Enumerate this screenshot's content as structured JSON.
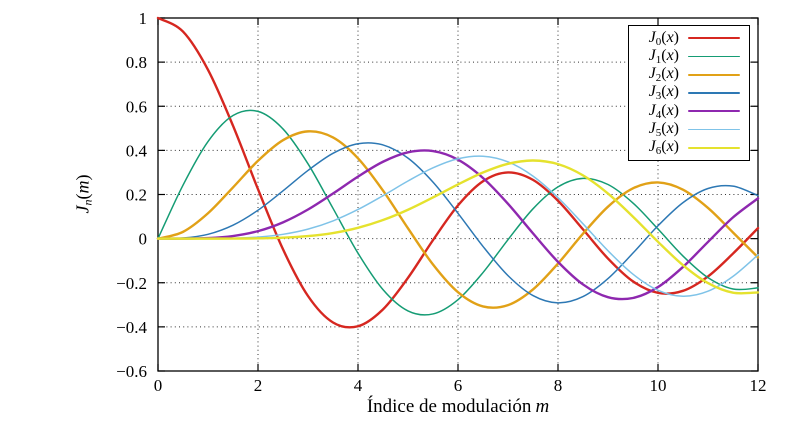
{
  "chart": {
    "background": "#ffffff",
    "axis_color": "#000000",
    "grid_color": "#333333"
  },
  "labels": {
    "xlabel": {
      "text": "Índice de modulación",
      "var": "m"
    },
    "ylabel": {
      "base": "J",
      "sub": "n",
      "open": "(",
      "var": "m",
      "close": ")"
    }
  },
  "chart_data": {
    "type": "line",
    "title": "",
    "xlabel": "Índice de modulación m",
    "ylabel": "J_n(m)",
    "xlim": [
      0,
      12
    ],
    "ylim": [
      -0.6,
      1
    ],
    "grid": true,
    "legend_position": "top-right",
    "xticks": [
      0,
      2,
      4,
      6,
      8,
      10,
      12
    ],
    "xtick_labels": [
      "0",
      "2",
      "4",
      "6",
      "8",
      "10",
      "12"
    ],
    "yticks": [
      1,
      0.8,
      0.6,
      0.4,
      0.2,
      0,
      -0.2,
      -0.4,
      -0.6
    ],
    "ytick_labels": [
      "1",
      "0.8",
      "0.6",
      "0.4",
      "0.2",
      "0",
      "−0.2",
      "−0.4",
      "−0.6"
    ],
    "x": [
      0,
      0.5,
      1,
      1.5,
      2,
      2.5,
      3,
      3.5,
      4,
      4.5,
      5,
      5.5,
      6,
      6.5,
      7,
      7.5,
      8,
      8.5,
      9,
      9.5,
      10,
      10.5,
      11,
      11.5,
      12
    ],
    "series": [
      {
        "name": "J0(x)",
        "label_parts": [
          [
            "i",
            "J"
          ],
          [
            "sub",
            "0"
          ],
          [
            "t",
            "("
          ],
          [
            "i",
            "x"
          ],
          [
            "t",
            ")"
          ]
        ],
        "color": "#d62720",
        "width": 2.4,
        "values": [
          1,
          0.9385,
          0.7652,
          0.5118,
          0.2239,
          -0.0484,
          -0.2601,
          -0.3801,
          -0.3971,
          -0.3205,
          -0.1776,
          -0.0068,
          0.1506,
          0.2601,
          0.3001,
          0.2663,
          0.1717,
          0.0419,
          -0.0903,
          -0.1939,
          -0.2459,
          -0.2366,
          -0.1712,
          -0.0677,
          0.0477
        ]
      },
      {
        "name": "J1(x)",
        "label_parts": [
          [
            "i",
            "J"
          ],
          [
            "sub",
            "1"
          ],
          [
            "t",
            "("
          ],
          [
            "i",
            "x"
          ],
          [
            "t",
            ")"
          ]
        ],
        "color": "#159c74",
        "width": 1.5,
        "values": [
          0,
          0.2423,
          0.4401,
          0.5579,
          0.5767,
          0.4971,
          0.3391,
          0.1374,
          -0.066,
          -0.2311,
          -0.3276,
          -0.3414,
          -0.2767,
          -0.1538,
          -0.0047,
          0.1352,
          0.2346,
          0.2731,
          0.2453,
          0.1613,
          0.0435,
          -0.0789,
          -0.1768,
          -0.2284,
          -0.2234
        ]
      },
      {
        "name": "J2(x)",
        "label_parts": [
          [
            "i",
            "J"
          ],
          [
            "sub",
            "2"
          ],
          [
            "t",
            "("
          ],
          [
            "i",
            "x"
          ],
          [
            "t",
            ")"
          ]
        ],
        "color": "#e1a117",
        "width": 2.4,
        "values": [
          0,
          0.0306,
          0.1149,
          0.2321,
          0.3528,
          0.4461,
          0.4861,
          0.4586,
          0.3641,
          0.2178,
          0.0466,
          -0.1173,
          -0.2429,
          -0.3074,
          -0.3014,
          -0.2303,
          -0.113,
          0.0223,
          0.1448,
          0.2279,
          0.2546,
          0.2216,
          0.139,
          0.0279,
          -0.0849
        ]
      },
      {
        "name": "J3(x)",
        "label_parts": [
          [
            "i",
            "J"
          ],
          [
            "sub",
            "3"
          ],
          [
            "t",
            "("
          ],
          [
            "i",
            "x"
          ],
          [
            "t",
            ")"
          ]
        ],
        "color": "#2d78b4",
        "width": 1.5,
        "values": [
          0,
          0.0026,
          0.0196,
          0.061,
          0.1289,
          0.2166,
          0.3091,
          0.3868,
          0.4302,
          0.4247,
          0.3648,
          0.2561,
          0.1148,
          -0.0353,
          -0.1676,
          -0.2581,
          -0.2911,
          -0.2626,
          -0.1809,
          -0.0653,
          0.0584,
          0.1633,
          0.2273,
          0.2381,
          0.1951
        ]
      },
      {
        "name": "J4(x)",
        "label_parts": [
          [
            "i",
            "J"
          ],
          [
            "sub",
            "4"
          ],
          [
            "t",
            "("
          ],
          [
            "i",
            "x"
          ],
          [
            "t",
            ")"
          ]
        ],
        "color": "#8e28af",
        "width": 2.4,
        "values": [
          0,
          0.0002,
          0.0025,
          0.0118,
          0.034,
          0.0738,
          0.132,
          0.2044,
          0.2811,
          0.3484,
          0.3912,
          0.3967,
          0.3576,
          0.2748,
          0.1578,
          0.0238,
          -0.1054,
          -0.2077,
          -0.2655,
          -0.2691,
          -0.2196,
          -0.1283,
          -0.015,
          0.0963,
          0.1825
        ]
      },
      {
        "name": "J5(x)",
        "label_parts": [
          [
            "i",
            "J"
          ],
          [
            "sub",
            "5"
          ],
          [
            "t",
            "("
          ],
          [
            "i",
            "x"
          ],
          [
            "t",
            ")"
          ]
        ],
        "color": "#7fc3e8",
        "width": 1.5,
        "values": [
          0,
          0,
          0.0002,
          0.0018,
          0.007,
          0.0195,
          0.043,
          0.0804,
          0.1321,
          0.1947,
          0.2611,
          0.3209,
          0.3621,
          0.3736,
          0.3479,
          0.2833,
          0.1858,
          0.0671,
          -0.055,
          -0.1613,
          -0.2341,
          -0.2611,
          -0.2383,
          -0.1711,
          -0.0735
        ]
      },
      {
        "name": "J6(x)",
        "label_parts": [
          [
            "i",
            "J"
          ],
          [
            "sub",
            "6"
          ],
          [
            "t",
            "("
          ],
          [
            "i",
            "x"
          ],
          [
            "t",
            ")"
          ]
        ],
        "color": "#e5e22e",
        "width": 2.4,
        "values": [
          0,
          0,
          0,
          0.0002,
          0.0012,
          0.0042,
          0.0114,
          0.0254,
          0.0491,
          0.0843,
          0.131,
          0.1868,
          0.2458,
          0.2999,
          0.3392,
          0.3541,
          0.3376,
          0.2867,
          0.2043,
          0.0993,
          -0.0145,
          -0.1203,
          -0.2016,
          -0.2451,
          -0.2437
        ]
      }
    ]
  }
}
